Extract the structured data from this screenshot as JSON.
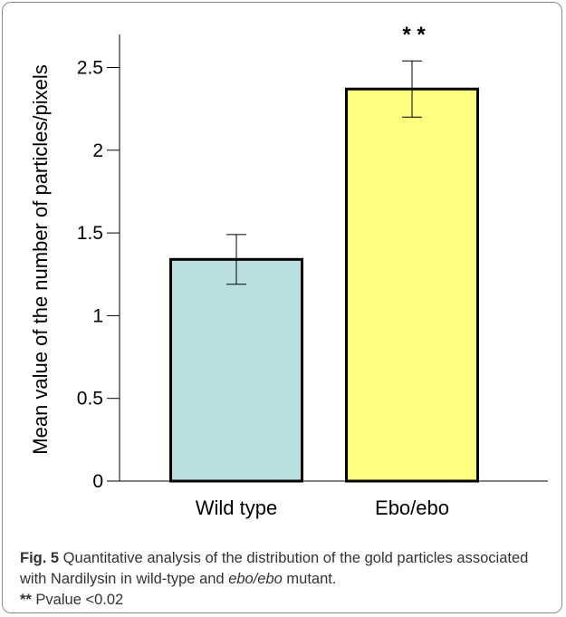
{
  "chart_data": {
    "type": "bar",
    "categories": [
      "Wild type",
      "Ebo/ebo"
    ],
    "values": [
      1.34,
      2.37
    ],
    "errors": [
      {
        "low": 1.19,
        "high": 1.49
      },
      {
        "low": 2.2,
        "high": 2.54
      }
    ],
    "colors": [
      "#b9dfe0",
      "#ffff80"
    ],
    "significance": [
      "",
      "* *"
    ],
    "ylabel": "Mean value of the number of particles/pixels",
    "xlabel": "",
    "ylim": [
      0,
      2.6
    ],
    "yticks": [
      0,
      0.5,
      1,
      1.5,
      2,
      2.5
    ],
    "ytick_labels": [
      "0",
      "0.5",
      "1",
      "1.5",
      "2",
      "2.5"
    ],
    "grid": false
  },
  "caption": {
    "fig_label": "Fig. 5",
    "text_1": " Quantitative analysis of the distribution of the gold particles associated with Nardilysin in wild-type and ",
    "italic": "ebo/ebo",
    "text_2": " mutant.",
    "note_mark": "**",
    "note_text": " Pvalue <0.02"
  }
}
